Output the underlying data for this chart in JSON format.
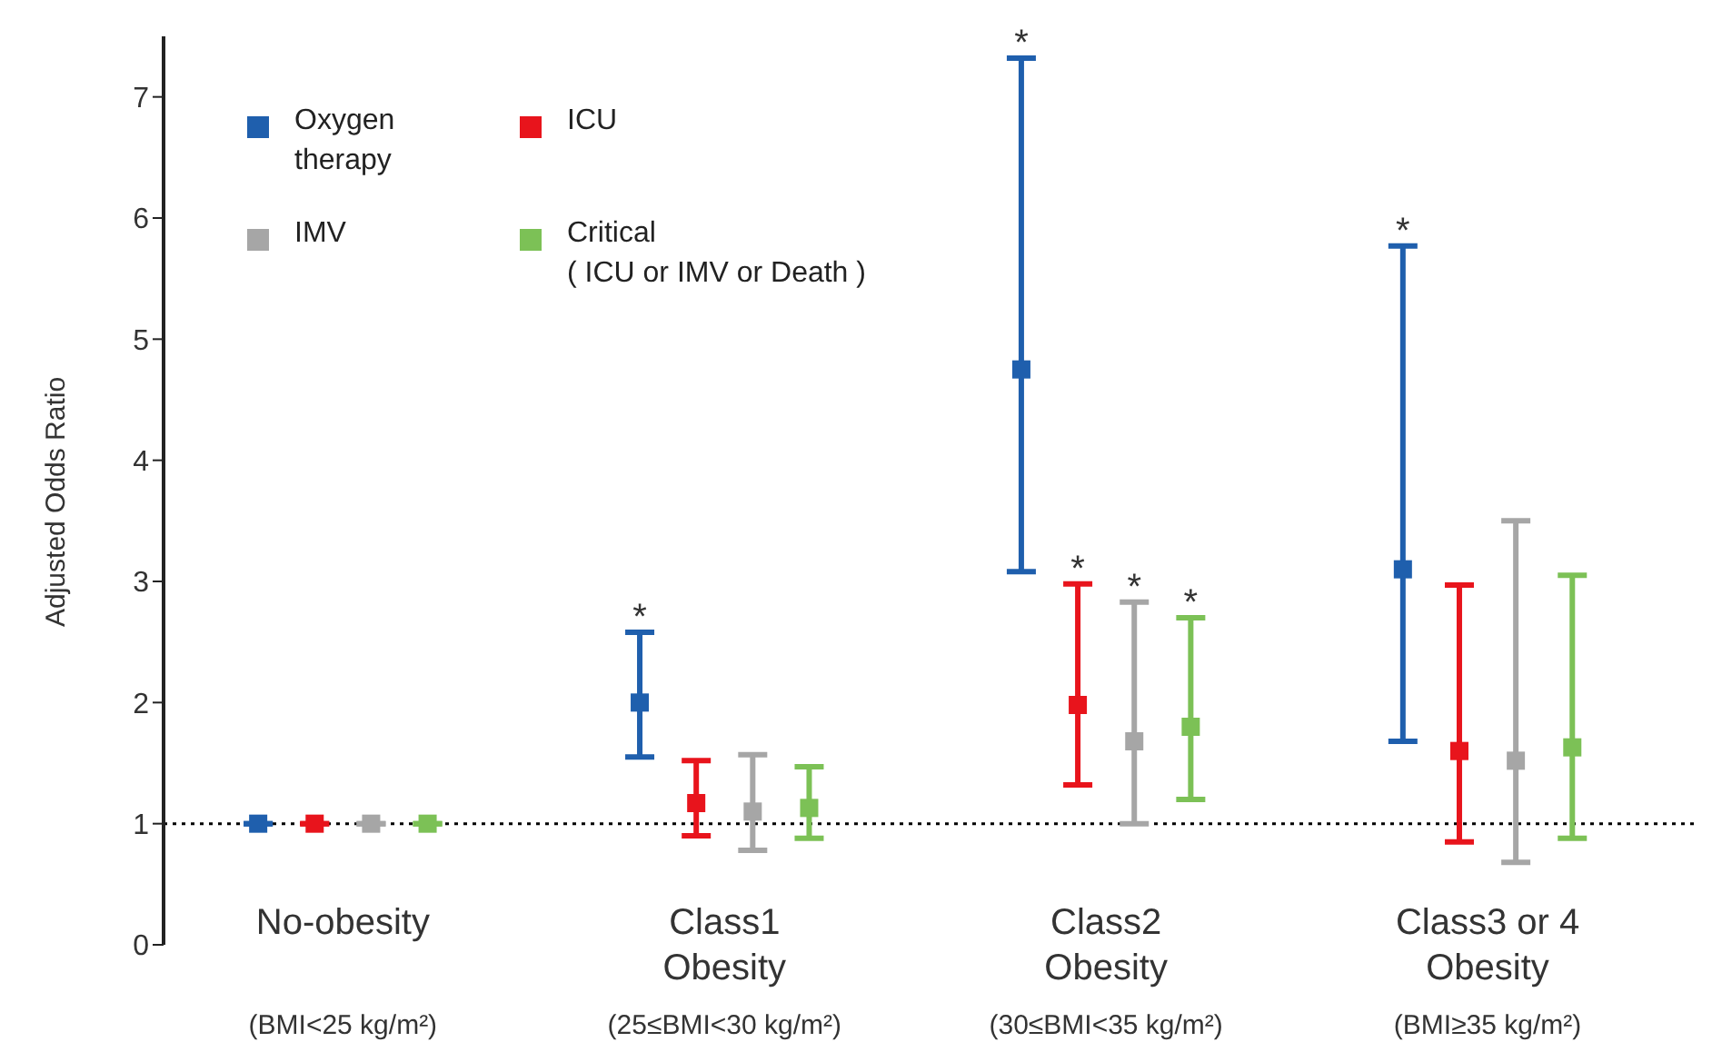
{
  "chart_data": {
    "type": "scatter",
    "ylabel": "Adjusted Odds Ratio",
    "categories": [
      "No-obesity\n\n(BMI<25 kg/m²)",
      "Class1\nObesity\n(25≤BMI<30 kg/m²)",
      "Class2\nObesity\n(30≤BMI<35 kg/m²)",
      "Class3 or 4\nObesity\n(BMI≥35 kg/m²)"
    ],
    "series": [
      {
        "name": "Oxygen\ntherapy",
        "color": "#1f5fad",
        "values": [
          1,
          2.0,
          4.75,
          3.1
        ],
        "errors": [
          null,
          [
            1.55,
            2.58
          ],
          [
            3.08,
            7.32
          ],
          [
            1.68,
            5.77
          ]
        ]
      },
      {
        "name": "ICU",
        "color": "#e8141c",
        "values": [
          1,
          1.17,
          1.98,
          1.6
        ],
        "errors": [
          null,
          [
            0.9,
            1.52
          ],
          [
            1.32,
            2.98
          ],
          [
            0.85,
            2.97
          ]
        ]
      },
      {
        "name": "IMV",
        "color": "#a6a6a6",
        "values": [
          1,
          1.1,
          1.68,
          1.52
        ],
        "errors": [
          null,
          [
            0.78,
            1.57
          ],
          [
            1.0,
            2.83
          ],
          [
            0.68,
            3.5
          ]
        ]
      },
      {
        "name": "Critical\n( ICU or IMV or Death )",
        "color": "#7cc156",
        "values": [
          1,
          1.13,
          1.8,
          1.63
        ],
        "errors": [
          null,
          [
            0.88,
            1.47
          ],
          [
            1.2,
            2.7
          ],
          [
            0.88,
            3.05
          ]
        ]
      }
    ],
    "annotations": [
      {
        "text": "*",
        "y": 2.58
      },
      {
        "text": "*",
        "y": 7.32
      },
      {
        "text": "*",
        "y": 2.98
      },
      {
        "text": "*",
        "y": 2.83
      },
      {
        "text": "*",
        "y": 2.7
      },
      {
        "text": "*",
        "y": 5.77
      }
    ],
    "ylim": [
      0,
      7.5
    ],
    "yticks": [
      0,
      1,
      2,
      3,
      4,
      5,
      6,
      7
    ],
    "ref_lines": [
      {
        "axis": "y",
        "value": 1,
        "color": "#000000",
        "line_style": "dotted"
      }
    ],
    "marker": "square",
    "legend": "top left"
  }
}
